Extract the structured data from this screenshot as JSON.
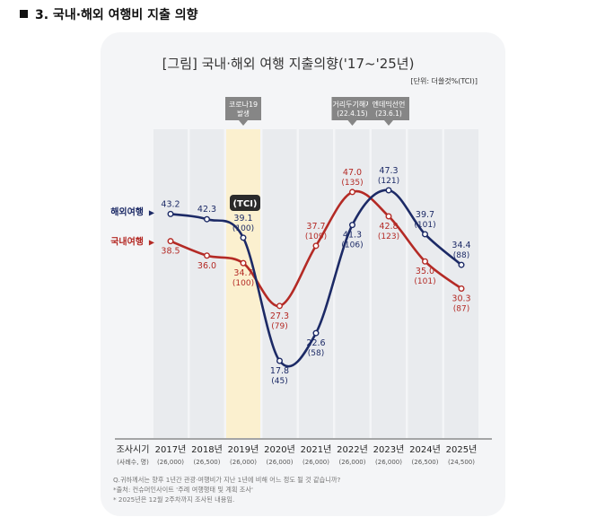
{
  "heading": {
    "marker": "■",
    "text": "3. 국내·해외 여행비 지출 의향"
  },
  "chart_data": {
    "type": "line",
    "title": "[그림] 국내·해외 여행 지출의향('17~'25년)",
    "unit_note": "[단위: 더쓸것%(TCI)]",
    "tci_label": "(TCI)",
    "x_header": "조사시기",
    "x_subheader": "(사례수, 명)",
    "categories": [
      "2017년",
      "2018년",
      "2019년",
      "2020년",
      "2021년",
      "2022년",
      "2023년",
      "2024년",
      "2025년"
    ],
    "sample_sizes": [
      "(26,000)",
      "(26,500)",
      "(26,000)",
      "(26,000)",
      "(26,000)",
      "(26,000)",
      "(26,000)",
      "(26,500)",
      "(24,500)"
    ],
    "series": [
      {
        "name": "해외여행",
        "arrow": "▶",
        "color": "#1c2a66",
        "values": [
          43.2,
          42.3,
          39.1,
          17.8,
          22.6,
          41.3,
          47.3,
          39.7,
          34.4
        ],
        "tci": [
          null,
          null,
          "(100)",
          "(45)",
          "(58)",
          "(106)",
          "(121)",
          "(101)",
          "(88)"
        ]
      },
      {
        "name": "국내여행",
        "arrow": "▶",
        "color": "#b42a25",
        "values": [
          38.5,
          36.0,
          34.7,
          27.3,
          37.7,
          47.0,
          42.8,
          35.0,
          30.3
        ],
        "tci": [
          null,
          null,
          "(100)",
          "(79)",
          "(109)",
          "(135)",
          "(123)",
          "(101)",
          "(87)"
        ]
      }
    ],
    "annotations": [
      {
        "category": "2019년",
        "lines": [
          "코로나19",
          "발생"
        ]
      },
      {
        "category": "2022년",
        "lines": [
          "거리두기해제",
          "(22.4.15)"
        ]
      },
      {
        "category": "2023년",
        "lines": [
          "엔데믹선언",
          "(23.6.1)"
        ]
      }
    ],
    "ylim": [
      10,
      55
    ],
    "notes": [
      "Q.귀하께서는 향후 1년간 관광·여행비가 지난 1년에 비해 어느 정도 될 것 같습니까?",
      "*출처: 컨슈머인사이트 '주례 여행행태 및 계획 조사'",
      "* 2025년은 12월 2주차까지 조사된 내용임."
    ]
  }
}
